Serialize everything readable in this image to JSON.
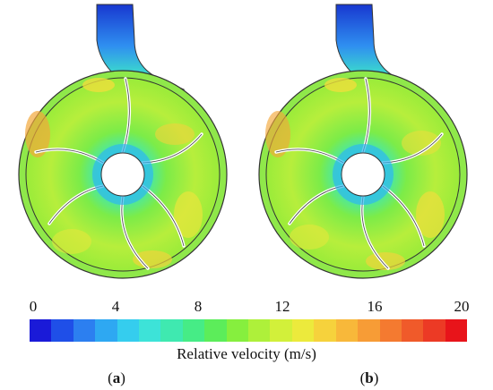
{
  "colorbar": {
    "title": "Relative velocity (m/s)",
    "ticks": [
      "0",
      "4",
      "8",
      "12",
      "16",
      "20"
    ],
    "min": 0,
    "max": 20,
    "colors": [
      "#1a1ad8",
      "#1f4fe8",
      "#2c7ff0",
      "#2ea8f2",
      "#35cdee",
      "#3de3d8",
      "#3fe9b0",
      "#46ec86",
      "#5ced5a",
      "#86ef3e",
      "#aef03a",
      "#d2f03a",
      "#ecea3c",
      "#f6d23c",
      "#f8b83a",
      "#f79c36",
      "#f47a30",
      "#f05a2a",
      "#ec3a25",
      "#e8141a"
    ]
  },
  "panels": [
    {
      "id": "a",
      "label_letter": "a",
      "open": "(",
      "close": ")"
    },
    {
      "id": "b",
      "label_letter": "b",
      "open": "(",
      "close": ")"
    }
  ]
}
